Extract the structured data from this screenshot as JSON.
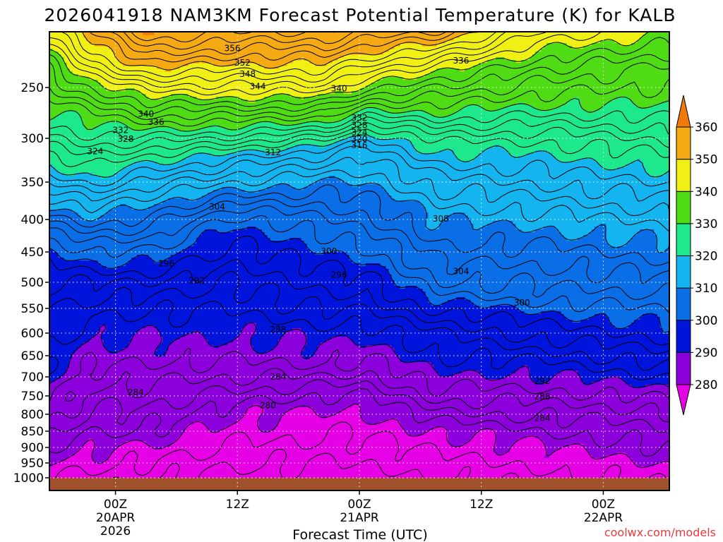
{
  "chart_data": {
    "type": "contour",
    "title": "2026041918 NAM3KM Forecast Potential Temperature (K) for KALB",
    "xlabel": "Forecast Time (UTC)",
    "ylabel": "",
    "footer": "coolwx.com/models",
    "y_axis": {
      "ticks": [
        250,
        300,
        350,
        400,
        450,
        500,
        550,
        600,
        650,
        700,
        750,
        800,
        850,
        900,
        950,
        1000
      ],
      "labels": [
        "250",
        "300",
        "350",
        "400",
        "450",
        "500",
        "550",
        "600",
        "650",
        "700",
        "750",
        "800",
        "850",
        "900",
        "950",
        "1000"
      ],
      "range": [
        200,
        1020
      ]
    },
    "x_axis": {
      "range_hours": [
        -6.5,
        54.5
      ],
      "ticks": [
        {
          "hour": 0,
          "lines": [
            "00Z",
            "20APR",
            "2026"
          ]
        },
        {
          "hour": 12,
          "lines": [
            "12Z"
          ]
        },
        {
          "hour": 24,
          "lines": [
            "00Z",
            "21APR"
          ]
        },
        {
          "hour": 36,
          "lines": [
            "12Z"
          ]
        },
        {
          "hour": 48,
          "lines": [
            "00Z",
            "22APR"
          ]
        }
      ]
    },
    "colorbar": {
      "labels": [
        "280",
        "290",
        "300",
        "310",
        "320",
        "330",
        "340",
        "350",
        "360"
      ],
      "bins": [
        {
          "value": 275,
          "color": "#e600e6"
        },
        {
          "value": 285,
          "color": "#8c00dc"
        },
        {
          "value": 295,
          "color": "#0014dc"
        },
        {
          "value": 305,
          "color": "#0a6ee6"
        },
        {
          "value": 315,
          "color": "#14b4f0"
        },
        {
          "value": 325,
          "color": "#1ee88c"
        },
        {
          "value": 335,
          "color": "#50dc14"
        },
        {
          "value": 345,
          "color": "#f0f014"
        },
        {
          "value": 355,
          "color": "#f5aa14"
        },
        {
          "value": 365,
          "color": "#f07a0a"
        }
      ]
    },
    "contour_labels": [
      {
        "text": "356",
        "hour": 11.5,
        "p": 215
      },
      {
        "text": "352",
        "hour": 12.5,
        "p": 228
      },
      {
        "text": "348",
        "hour": 13,
        "p": 238
      },
      {
        "text": "344",
        "hour": 14,
        "p": 249
      },
      {
        "text": "340",
        "hour": 22,
        "p": 251
      },
      {
        "text": "336",
        "hour": 34,
        "p": 226
      },
      {
        "text": "340",
        "hour": 3,
        "p": 276
      },
      {
        "text": "336",
        "hour": 4,
        "p": 284
      },
      {
        "text": "332",
        "hour": 0.5,
        "p": 292
      },
      {
        "text": "332",
        "hour": 24,
        "p": 280
      },
      {
        "text": "328",
        "hour": 24,
        "p": 287
      },
      {
        "text": "324",
        "hour": 24,
        "p": 294
      },
      {
        "text": "320",
        "hour": 24,
        "p": 301
      },
      {
        "text": "316",
        "hour": 24,
        "p": 308
      },
      {
        "text": "328",
        "hour": 1,
        "p": 301
      },
      {
        "text": "324",
        "hour": -2,
        "p": 315
      },
      {
        "text": "312",
        "hour": 15.5,
        "p": 316
      },
      {
        "text": "304",
        "hour": 10,
        "p": 383
      },
      {
        "text": "308",
        "hour": 32,
        "p": 399
      },
      {
        "text": "300",
        "hour": 21,
        "p": 449
      },
      {
        "text": "296",
        "hour": 5,
        "p": 469
      },
      {
        "text": "296",
        "hour": 22,
        "p": 488
      },
      {
        "text": "292",
        "hour": 8,
        "p": 497
      },
      {
        "text": "304",
        "hour": 34,
        "p": 482
      },
      {
        "text": "300",
        "hour": 40,
        "p": 539
      },
      {
        "text": "288",
        "hour": 16,
        "p": 593
      },
      {
        "text": "284",
        "hour": 16,
        "p": 700
      },
      {
        "text": "284",
        "hour": 2,
        "p": 741
      },
      {
        "text": "292",
        "hour": 42,
        "p": 711
      },
      {
        "text": "280",
        "hour": 15,
        "p": 776
      },
      {
        "text": "288",
        "hour": 42,
        "p": 752
      },
      {
        "text": "284",
        "hour": 42,
        "p": 811
      }
    ],
    "isotherm_levels": [
      276,
      278,
      280,
      282,
      284,
      286,
      288,
      290,
      292,
      294,
      296,
      298,
      300,
      302,
      304,
      306,
      308,
      310,
      312,
      314,
      316,
      318,
      320,
      322,
      324,
      326,
      328,
      330,
      332,
      334,
      336,
      338,
      340,
      342,
      344,
      346,
      348,
      350,
      352,
      354,
      356,
      358
    ],
    "legend": "right (vertical colorbar)",
    "grid": "dotted white at each y tick and x tick"
  }
}
